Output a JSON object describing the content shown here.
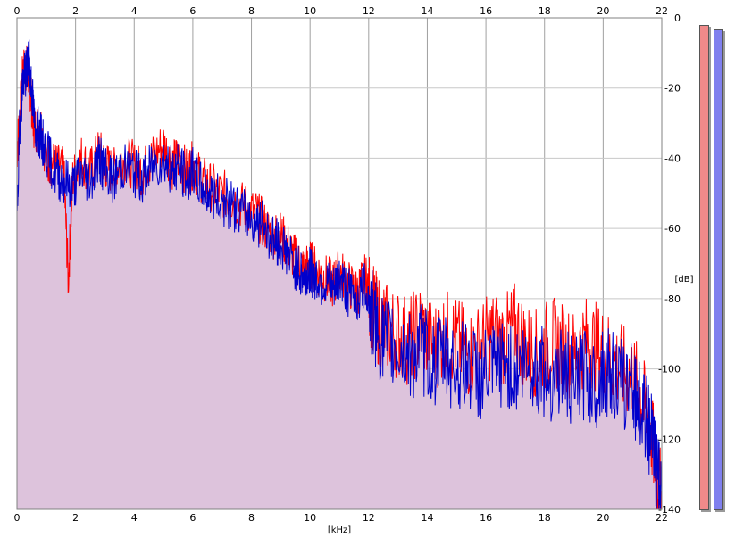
{
  "chart_data": {
    "type": "area",
    "title": "",
    "xlabel": "[kHz]",
    "ylabel": "[dB]",
    "xlim": [
      0,
      22
    ],
    "ylim": [
      -140,
      0
    ],
    "x_ticks": [
      "0",
      "2",
      "4",
      "6",
      "8",
      "10",
      "12",
      "14",
      "16",
      "18",
      "20",
      "22"
    ],
    "y_ticks": [
      "0",
      "-20",
      "-40",
      "-60",
      "-80",
      "-100",
      "-120",
      "-140"
    ],
    "grid": true,
    "series": [
      {
        "channel": "red",
        "color": "#ff0000",
        "fill": "#f4c4c4",
        "x": [
          0,
          0.1,
          0.2,
          0.3,
          0.4,
          0.5,
          0.6,
          0.8,
          1.0,
          1.3,
          1.6,
          1.75,
          1.9,
          2.2,
          2.5,
          2.8,
          3.0,
          3.3,
          3.6,
          4.0,
          4.3,
          4.6,
          5.0,
          5.3,
          5.5,
          5.8,
          6.0,
          6.3,
          6.6,
          7.0,
          7.4,
          7.8,
          8.2,
          8.5,
          8.8,
          9.0,
          9.3,
          9.6,
          9.8,
          10.0,
          10.2,
          10.5,
          10.8,
          11.0,
          11.3,
          11.6,
          11.9,
          12.1,
          12.3,
          12.6,
          13.0,
          13.4,
          13.8,
          14.2,
          14.6,
          15.0,
          15.4,
          15.8,
          16.2,
          16.6,
          17.0,
          17.4,
          17.8,
          18.2,
          18.6,
          19.0,
          19.4,
          19.8,
          20.2,
          20.6,
          21.0,
          21.3,
          21.6,
          21.8,
          22.0
        ],
        "y": [
          -38,
          -28,
          -16,
          -14,
          -16,
          -24,
          -32,
          -30,
          -40,
          -42,
          -44,
          -75,
          -46,
          -40,
          -44,
          -38,
          -42,
          -44,
          -40,
          -42,
          -44,
          -40,
          -36,
          -42,
          -40,
          -44,
          -42,
          -46,
          -48,
          -50,
          -52,
          -54,
          -56,
          -60,
          -62,
          -62,
          -66,
          -70,
          -72,
          -70,
          -72,
          -74,
          -76,
          -72,
          -76,
          -78,
          -74,
          -82,
          -86,
          -88,
          -90,
          -92,
          -88,
          -94,
          -90,
          -92,
          -96,
          -94,
          -90,
          -92,
          -88,
          -94,
          -96,
          -92,
          -94,
          -96,
          -92,
          -94,
          -96,
          -100,
          -102,
          -108,
          -116,
          -128,
          -138
        ]
      },
      {
        "channel": "blue",
        "color": "#0000cc",
        "fill": "#c0c0f8",
        "x": [
          0,
          0.1,
          0.2,
          0.3,
          0.4,
          0.5,
          0.6,
          0.8,
          1.0,
          1.3,
          1.6,
          1.9,
          2.2,
          2.5,
          2.8,
          3.0,
          3.3,
          3.6,
          4.0,
          4.3,
          4.6,
          5.0,
          5.3,
          5.5,
          5.8,
          6.0,
          6.3,
          6.6,
          7.0,
          7.4,
          7.8,
          8.2,
          8.5,
          8.8,
          9.0,
          9.3,
          9.6,
          9.8,
          10.0,
          10.2,
          10.5,
          10.8,
          11.0,
          11.3,
          11.6,
          11.9,
          12.1,
          12.3,
          12.6,
          13.0,
          13.4,
          13.8,
          14.2,
          14.6,
          15.0,
          15.4,
          15.8,
          16.2,
          16.6,
          17.0,
          17.4,
          17.8,
          18.2,
          18.6,
          19.0,
          19.4,
          19.8,
          20.2,
          20.6,
          21.0,
          21.3,
          21.6,
          21.8,
          22.0
        ],
        "y": [
          -58,
          -30,
          -18,
          -16,
          -12,
          -20,
          -30,
          -34,
          -38,
          -44,
          -46,
          -48,
          -44,
          -46,
          -40,
          -44,
          -46,
          -42,
          -44,
          -46,
          -42,
          -40,
          -44,
          -42,
          -46,
          -44,
          -48,
          -50,
          -52,
          -54,
          -56,
          -58,
          -60,
          -64,
          -64,
          -68,
          -72,
          -74,
          -72,
          -74,
          -76,
          -78,
          -74,
          -78,
          -80,
          -76,
          -84,
          -90,
          -92,
          -94,
          -96,
          -94,
          -98,
          -96,
          -100,
          -98,
          -102,
          -100,
          -98,
          -100,
          -98,
          -100,
          -102,
          -100,
          -104,
          -102,
          -104,
          -100,
          -104,
          -106,
          -110,
          -118,
          -126,
          -140
        ]
      }
    ]
  }
}
